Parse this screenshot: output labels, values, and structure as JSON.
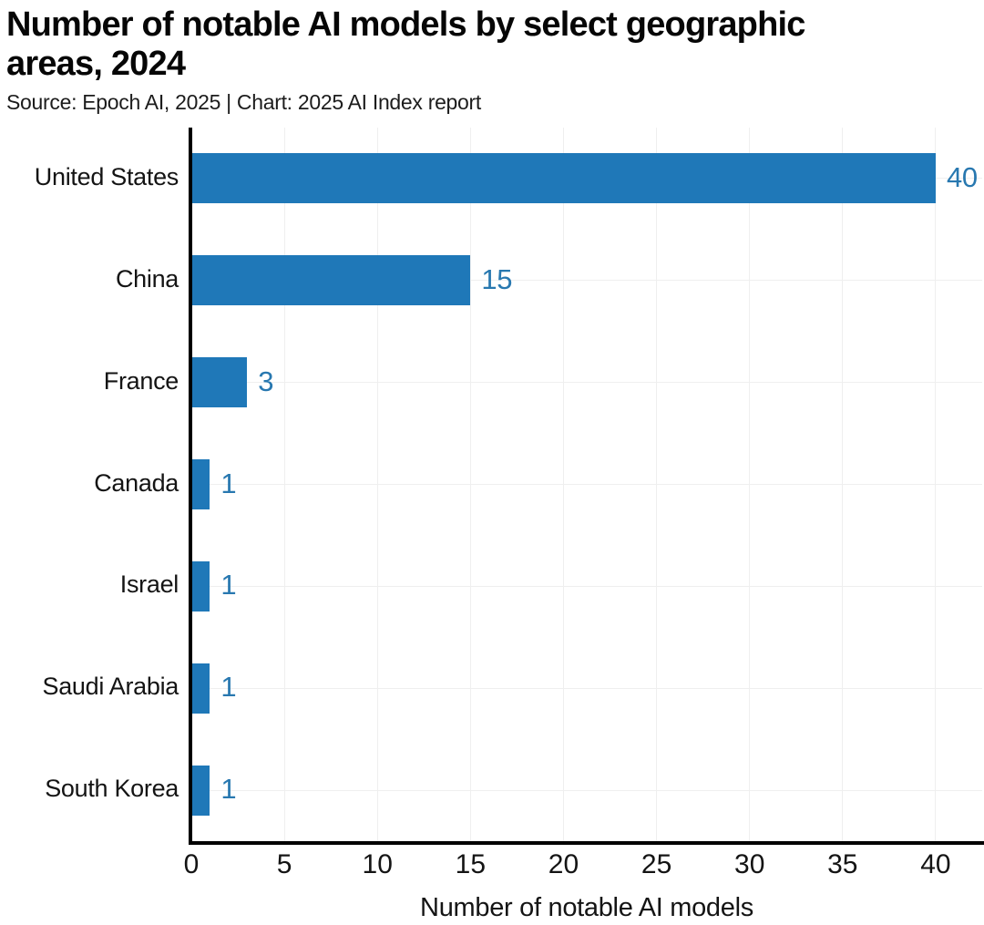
{
  "header": {
    "title_lines": [
      "Number of notable AI models by select geographic",
      "areas, 2024"
    ],
    "subtitle": "Source: Epoch AI, 2025 | Chart: 2025 AI Index report"
  },
  "chart_data": {
    "type": "bar",
    "orientation": "horizontal",
    "title": "Number of notable AI models by select geographic areas, 2024",
    "subtitle": "Source: Epoch AI, 2025 | Chart: 2025 AI Index report",
    "categories": [
      "United States",
      "China",
      "France",
      "Canada",
      "Israel",
      "Saudi Arabia",
      "South Korea"
    ],
    "values": [
      40,
      15,
      3,
      1,
      1,
      1,
      1
    ],
    "value_labels": [
      "40",
      "15",
      "3",
      "1",
      "1",
      "1",
      "1"
    ],
    "xlabel": "Number of notable AI models",
    "x_ticks": [
      0,
      5,
      10,
      15,
      20,
      25,
      30,
      35,
      40
    ],
    "xlim": [
      0,
      42.5
    ],
    "grid": true,
    "legend": "none",
    "colors": {
      "bar": "#1f78b8",
      "value_label": "#2878b0",
      "axis": "#000000",
      "gridline": "#efefef",
      "text": "#141414"
    }
  }
}
